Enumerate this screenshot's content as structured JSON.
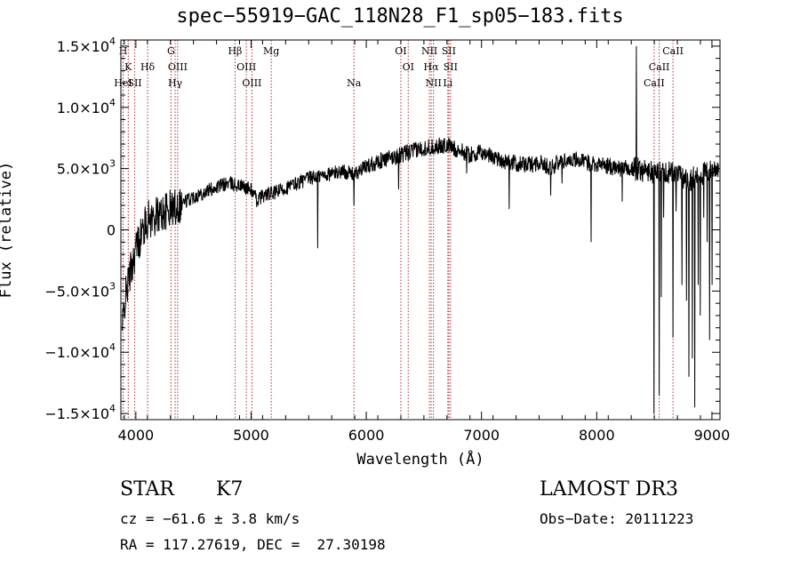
{
  "chart_data": {
    "type": "line",
    "title": "spec−55919−GAC_118N28_F1_sp05−183.fits",
    "xlabel": "Wavelength (Å)",
    "ylabel": "Flux (relative)",
    "xlim": [
      3870,
      9070
    ],
    "ylim": [
      -15500,
      15500
    ],
    "xticks": [
      4000,
      5000,
      6000,
      7000,
      8000,
      9000
    ],
    "xtick_labels": [
      "4000",
      "5000",
      "6000",
      "7000",
      "8000",
      "9000"
    ],
    "yticks": [
      -15000,
      -10000,
      -5000,
      0,
      5000,
      10000,
      15000
    ],
    "ytick_labels": [
      {
        "mant": "−1.5×10",
        "exp": "4"
      },
      {
        "mant": "−1.0×10",
        "exp": "4"
      },
      {
        "mant": "−5.0×10",
        "exp": "3"
      },
      {
        "mant": "0",
        "exp": ""
      },
      {
        "mant": "5.0×10",
        "exp": "3"
      },
      {
        "mant": "1.0×10",
        "exp": "4"
      },
      {
        "mant": "1.5×10",
        "exp": "4"
      }
    ],
    "lines": [
      {
        "label": "H",
        "x": 3890,
        "row": 0
      },
      {
        "label": "K",
        "x": 3934,
        "row": 1
      },
      {
        "label": "HeI",
        "x": 3889,
        "row": 2
      },
      {
        "label": "SII",
        "x": 3990,
        "row": 2
      },
      {
        "label": "Hδ",
        "x": 4102,
        "row": 1
      },
      {
        "label": "G",
        "x": 4305,
        "row": 0
      },
      {
        "label": "OIII",
        "x": 4363,
        "row": 1
      },
      {
        "label": "Hγ",
        "x": 4341,
        "row": 2
      },
      {
        "label": "Hβ",
        "x": 4861,
        "row": 0
      },
      {
        "label": "OIII",
        "x": 4959,
        "row": 1
      },
      {
        "label": "OIII",
        "x": 5007,
        "row": 2
      },
      {
        "label": "Mg",
        "x": 5175,
        "row": 0
      },
      {
        "label": "Na",
        "x": 5893,
        "row": 2
      },
      {
        "label": "OI",
        "x": 6300,
        "row": 0
      },
      {
        "label": "OI",
        "x": 6364,
        "row": 1
      },
      {
        "label": "NII",
        "x": 6548,
        "row": 0
      },
      {
        "label": "Hα",
        "x": 6563,
        "row": 1
      },
      {
        "label": "NII",
        "x": 6583,
        "row": 2
      },
      {
        "label": "SII",
        "x": 6716,
        "row": 0
      },
      {
        "label": "SII",
        "x": 6731,
        "row": 1
      },
      {
        "label": "Li",
        "x": 6708,
        "row": 2
      },
      {
        "label": "CaII",
        "x": 8662,
        "row": 0
      },
      {
        "label": "CaII",
        "x": 8542,
        "row": 1
      },
      {
        "label": "CaII",
        "x": 8498,
        "row": 2
      }
    ],
    "spectrum_anchors": [
      [
        3880,
        -8500
      ],
      [
        3900,
        -6000
      ],
      [
        3950,
        -3500
      ],
      [
        4000,
        -1500
      ],
      [
        4050,
        -300
      ],
      [
        4100,
        800
      ],
      [
        4200,
        1200
      ],
      [
        4300,
        1700
      ],
      [
        4400,
        2200
      ],
      [
        4500,
        2700
      ],
      [
        4600,
        3100
      ],
      [
        4700,
        3500
      ],
      [
        4800,
        3800
      ],
      [
        4900,
        3600
      ],
      [
        5000,
        3300
      ],
      [
        5050,
        2400
      ],
      [
        5100,
        2800
      ],
      [
        5200,
        3000
      ],
      [
        5300,
        3400
      ],
      [
        5400,
        3800
      ],
      [
        5500,
        4200
      ],
      [
        5600,
        4400
      ],
      [
        5700,
        4600
      ],
      [
        5800,
        4800
      ],
      [
        5900,
        4500
      ],
      [
        6000,
        5200
      ],
      [
        6100,
        5600
      ],
      [
        6200,
        5800
      ],
      [
        6300,
        6100
      ],
      [
        6400,
        6400
      ],
      [
        6500,
        6700
      ],
      [
        6600,
        6800
      ],
      [
        6700,
        6900
      ],
      [
        6800,
        6500
      ],
      [
        6900,
        6100
      ],
      [
        7000,
        6300
      ],
      [
        7100,
        6000
      ],
      [
        7200,
        5600
      ],
      [
        7300,
        5400
      ],
      [
        7400,
        5300
      ],
      [
        7500,
        5500
      ],
      [
        7600,
        5100
      ],
      [
        7700,
        5600
      ],
      [
        7800,
        5800
      ],
      [
        7900,
        5500
      ],
      [
        8000,
        5400
      ],
      [
        8100,
        5200
      ],
      [
        8200,
        5000
      ],
      [
        8300,
        5000
      ],
      [
        8400,
        4900
      ],
      [
        8500,
        4600
      ],
      [
        8600,
        4800
      ],
      [
        8700,
        4500
      ],
      [
        8800,
        4100
      ],
      [
        8900,
        4500
      ],
      [
        9000,
        4800
      ],
      [
        9050,
        5200
      ]
    ],
    "spectrum_features": [
      [
        5577,
        -1500
      ],
      [
        5893,
        2000
      ],
      [
        6280,
        3300
      ],
      [
        6870,
        4600
      ],
      [
        7240,
        1700
      ],
      [
        7600,
        2800
      ],
      [
        7700,
        3800
      ],
      [
        7950,
        -1000
      ],
      [
        8220,
        2300
      ],
      [
        8345,
        15000
      ],
      [
        8498,
        -15000
      ],
      [
        8542,
        -13500
      ],
      [
        8560,
        -5500
      ],
      [
        8580,
        1000
      ],
      [
        8662,
        -8800
      ],
      [
        8690,
        1500
      ],
      [
        8740,
        -4500
      ],
      [
        8780,
        -5800
      ],
      [
        8800,
        -12000
      ],
      [
        8830,
        -10500
      ],
      [
        8850,
        -14500
      ],
      [
        8880,
        -4500
      ],
      [
        8900,
        -7000
      ],
      [
        8930,
        1000
      ],
      [
        8960,
        -1000
      ],
      [
        8980,
        -9000
      ],
      [
        9000,
        -4500
      ]
    ]
  },
  "object_class": "STAR",
  "subclass": "K7",
  "survey": "LAMOST DR3",
  "cz_text": "cz = −61.6 ± 3.8 km/s",
  "obs_date_text": "Obs−Date: 20111223",
  "radec_text": "RA = 117.27619, DEC =  27.30198"
}
